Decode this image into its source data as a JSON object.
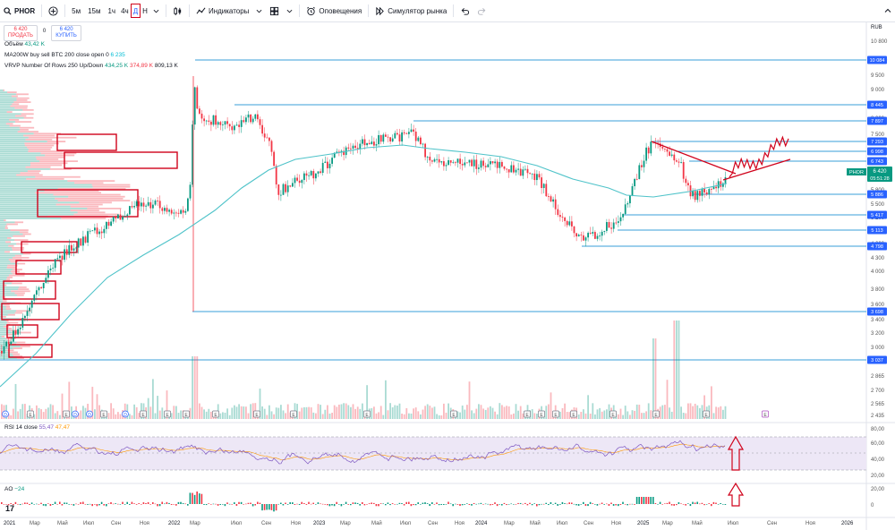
{
  "toolbar": {
    "symbol": "PHOR",
    "intervals": [
      "5м",
      "15м",
      "1ч",
      "4ч",
      "Д",
      "Н"
    ],
    "active_interval": "Д",
    "indicators_label": "Индикаторы",
    "alerts_label": "Оповещения",
    "replay_label": "Симулятор рынка"
  },
  "trade": {
    "sell_price": "6 420",
    "sell_label": "ПРОДАТЬ",
    "buy_price": "6 420",
    "buy_label": "КУПИТЬ",
    "spread": "0"
  },
  "legends": {
    "volume_name": "Объём",
    "volume_value": "43,42 K",
    "ma_name": "MA200W buy sell BTC 200 close open 0",
    "ma_value": "6 235",
    "vrvp_name": "VRVP Number Of Rows 250 Up/Down",
    "vrvp_v1": "434,25 K",
    "vrvp_v2": "374,89 K",
    "vrvp_v3": "809,13 K",
    "rsi_name": "RSI 14 close",
    "rsi_v1": "55,47",
    "rsi_v2": "47,47",
    "ao_name": "AO",
    "ao_value": "−24"
  },
  "price_axis": {
    "currency": "RUB",
    "ticks": [
      "10 800",
      "10 000",
      "9 500",
      "9 000",
      "8 500",
      "8 000",
      "7 500",
      "7 000",
      "6 600",
      "6 200",
      "5 800",
      "5 500",
      "5 200",
      "4 900",
      "4 600",
      "4 300",
      "4 000",
      "3 800",
      "3 600",
      "3 400",
      "3 200",
      "3 000",
      "2 865",
      "2 700",
      "2 565",
      "2 435"
    ],
    "level_labels": [
      "10 084",
      "8 445",
      "7 897",
      "7 293",
      "6 998",
      "6 743",
      "5 886",
      "5 417",
      "5 113",
      "4 798",
      "3 698",
      "3 037"
    ],
    "current_symbol": "PHOR",
    "current_price": "6 420",
    "countdown": "05:51:28"
  },
  "rsi_axis": [
    "80,00",
    "60,00",
    "40,00",
    "20,00"
  ],
  "ao_axis": [
    "20,00",
    "0"
  ],
  "time_axis": [
    "2021",
    "Мар",
    "Май",
    "Июл",
    "Сен",
    "Ноя",
    "2022",
    "Мар",
    "Июл",
    "Сен",
    "Ноя",
    "2023",
    "Мар",
    "Май",
    "Июл",
    "Сен",
    "Ноя",
    "2024",
    "Мар",
    "Май",
    "Июл",
    "Сен",
    "Ноя",
    "2025",
    "Мар",
    "Май",
    "Июл",
    "Сен",
    "Ноя",
    "2026"
  ],
  "event_badges": [
    "D",
    "E",
    "E",
    "D",
    "D",
    "E",
    "D",
    "E",
    "E",
    "E",
    "E",
    "E",
    "E",
    "E",
    "E",
    "E",
    "E",
    "E",
    "E",
    "E",
    "E",
    "E",
    "E",
    "E"
  ],
  "colors": {
    "up": "#089981",
    "down": "#f23645",
    "ma": "#4fc3c9",
    "level": "#3a9fd8",
    "drawing": "#d0021b",
    "rsi": "#7e57c2",
    "rsi_band": "#ede7f6"
  },
  "icons": [
    "search-icon",
    "add-symbol-icon",
    "chevron-down-icon",
    "bar-style-icon",
    "indicators-icon",
    "layout-icon",
    "alert-icon",
    "replay-icon",
    "undo-icon",
    "redo-icon"
  ]
}
